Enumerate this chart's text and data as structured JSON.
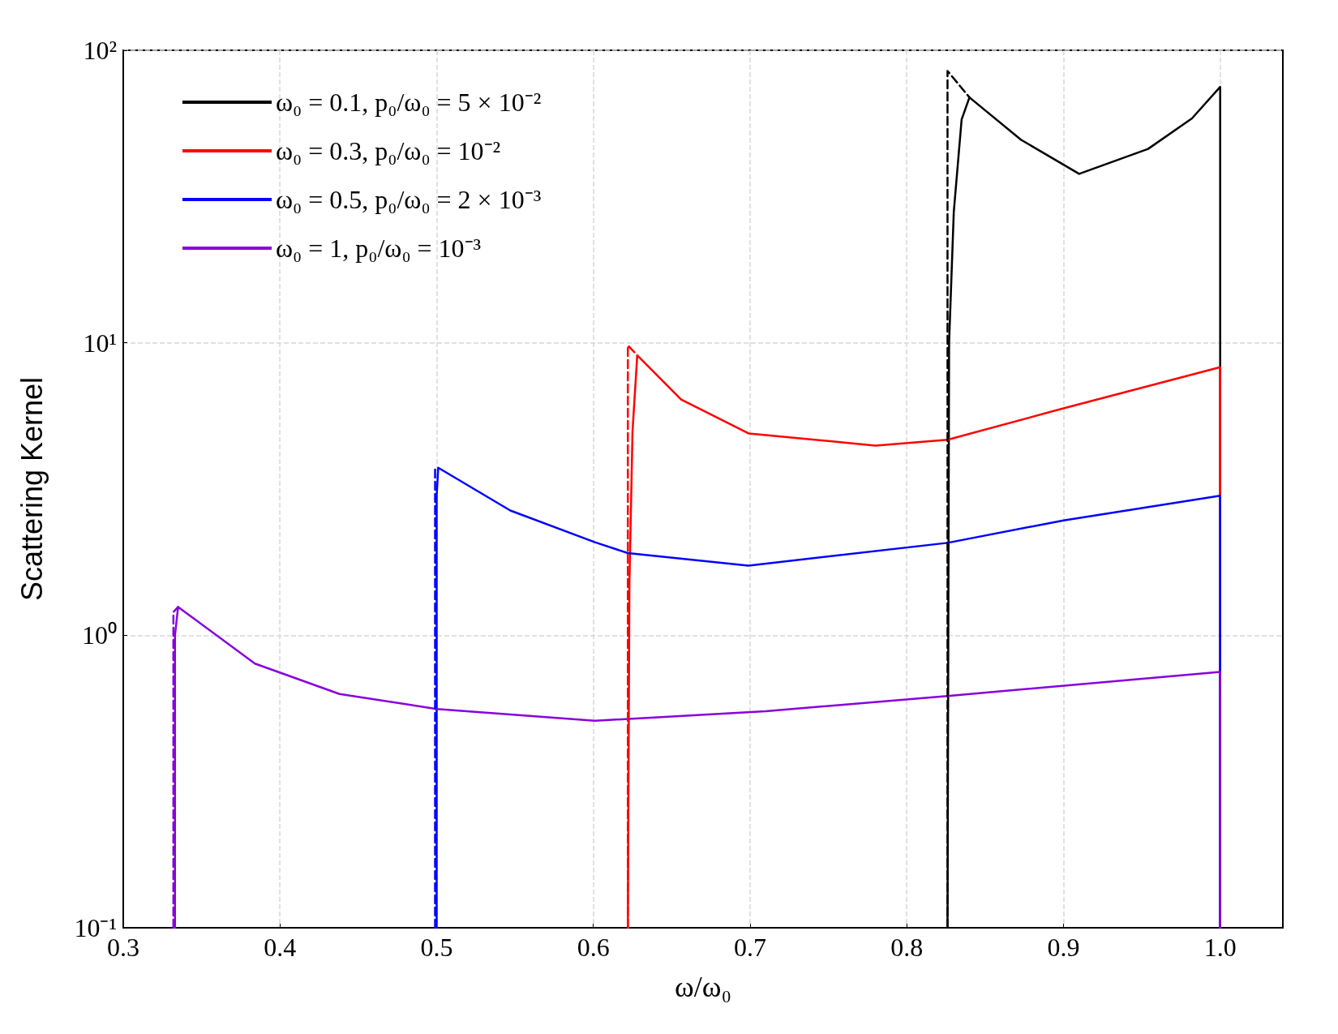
{
  "chart_data": {
    "type": "line",
    "xlabel": "ω/ω₀",
    "ylabel": "Scattering Kernel",
    "log": "y",
    "grid": true,
    "legend": "top left",
    "line_style": "solid",
    "xlim": [
      0.3,
      1.04
    ],
    "xticks": [
      0.3,
      0.4,
      0.5,
      0.6,
      0.7,
      0.8,
      0.9,
      {
        "value": 1,
        "label": "1.0"
      }
    ],
    "ylim": [
      0.1,
      100
    ],
    "yticks": [
      {
        "value": 0.1,
        "label": "10⁻¹"
      },
      {
        "value": 1,
        "label": "10⁰"
      },
      {
        "value": 10,
        "label": "10¹"
      },
      {
        "value": 100,
        "label": "10²"
      }
    ],
    "series": [
      {
        "name": "ω₀ = 0.1, p₀/ω₀ = 5 × 10⁻²",
        "color": "#000000",
        "x": [
          0.826,
          0.827,
          0.83,
          0.835,
          0.84,
          0.873,
          0.91,
          0.954,
          0.982,
          1.0,
          1.0
        ],
        "values": [
          0.1,
          10,
          28,
          58,
          69,
          49.4,
          37.8,
          46,
          58.5,
          75,
          0.1
        ]
      },
      {
        "name": "ω₀ = 0.3, p₀/ω₀ = 10⁻²",
        "color": "#ff0000",
        "x": [
          0.622,
          0.623,
          0.625,
          0.628,
          0.656,
          0.699,
          0.78,
          0.826,
          0.9,
          1.0,
          1.0
        ],
        "values": [
          0.1,
          1.5,
          5,
          9.06,
          6.4,
          4.9,
          4.45,
          4.66,
          5.97,
          8.25,
          0.1
        ]
      },
      {
        "name": "ω₀ = 0.5, p₀/ω₀ = 2 × 10⁻³",
        "color": "#0000ff",
        "x": [
          0.5,
          0.5,
          0.501,
          0.547,
          0.601,
          0.622,
          0.699,
          0.826,
          0.9,
          1.0,
          1.0
        ],
        "values": [
          0.1,
          3.0,
          3.74,
          2.67,
          2.08,
          1.91,
          1.73,
          2.07,
          2.47,
          3.0,
          0.1
        ]
      },
      {
        "name": "ω₀ = 1, p₀/ω₀ = 10⁻³",
        "color": "#8800dd",
        "x": [
          0.333,
          0.333,
          0.335,
          0.384,
          0.438,
          0.5,
          0.601,
          0.71,
          0.826,
          1.0,
          1.0
        ],
        "values": [
          0.1,
          1.0,
          1.25,
          0.8,
          0.63,
          0.56,
          0.51,
          0.55,
          0.62,
          0.75,
          0.1
        ]
      },
      {
        "color": "#000000",
        "line_style": "dashed",
        "x": [
          0.826,
          0.826,
          0.84
        ],
        "values": [
          0.1,
          85,
          69
        ]
      },
      {
        "color": "#ff0000",
        "line_style": "dashed",
        "x": [
          0.622,
          0.622,
          0.628
        ],
        "values": [
          0.1,
          9.8,
          9.06
        ]
      },
      {
        "color": "#0000ff",
        "line_style": "dashed",
        "x": [
          0.499,
          0.499,
          0.501
        ],
        "values": [
          0.1,
          3.7,
          3.74
        ]
      },
      {
        "color": "#8800dd",
        "line_style": "dashed",
        "x": [
          0.332,
          0.332,
          0.335
        ],
        "values": [
          0.1,
          1.2,
          1.25
        ]
      }
    ]
  }
}
